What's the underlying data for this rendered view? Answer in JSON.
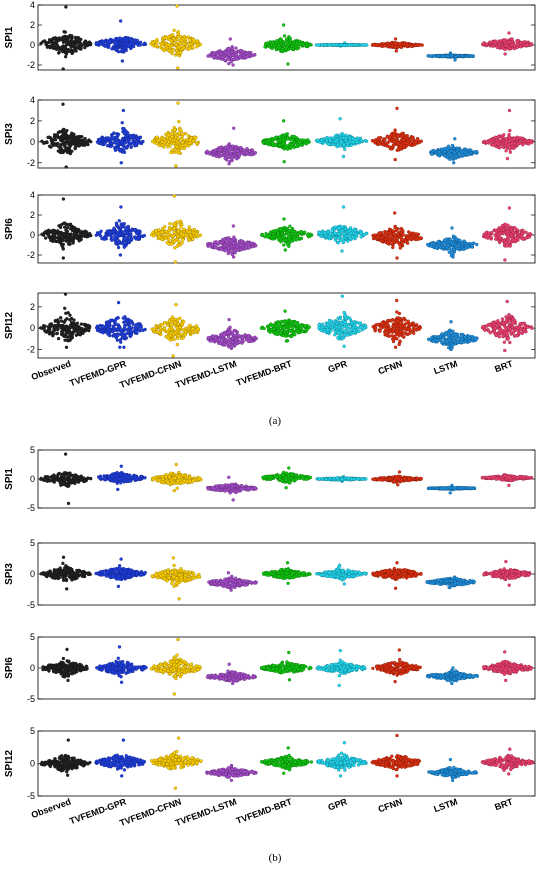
{
  "chart_data": {
    "type": "scatter",
    "style": "beeswarm",
    "categories": [
      "Observed",
      "TVFEMD-GPR",
      "TVFEMD-CFNN",
      "TVFEMD-LSTM",
      "TVFEMD-BRT",
      "GPR",
      "CFNN",
      "LSTM",
      "BRT"
    ],
    "colors": [
      "#222222",
      "#1f3fe0",
      "#ffd000",
      "#a64dcc",
      "#10c810",
      "#20d8f0",
      "#e03010",
      "#1e90e0",
      "#f04070"
    ],
    "panels": [
      {
        "caption": "(a)",
        "axes": [
          {
            "ylabel": "SPI1",
            "ylim": [
              -2.5,
              4
            ],
            "yticks": [
              -2,
              0,
              2,
              4
            ],
            "center": [
              0.1,
              0.15,
              0.15,
              -1.0,
              0.0,
              0.0,
              0.0,
              -1.1,
              0.1
            ],
            "spread": [
              0.9,
              0.6,
              0.9,
              0.55,
              0.55,
              0.03,
              0.2,
              0.08,
              0.45
            ],
            "min": [
              -2.4,
              -1.6,
              -2.3,
              -2.0,
              -1.9,
              -0.1,
              -0.6,
              -1.5,
              -0.9
            ],
            "max": [
              3.8,
              2.4,
              3.9,
              0.6,
              2.0,
              0.2,
              0.6,
              -0.8,
              1.2
            ]
          },
          {
            "ylabel": "SPI3",
            "ylim": [
              -2.5,
              4
            ],
            "yticks": [
              -2,
              0,
              2,
              4
            ],
            "center": [
              0.0,
              0.1,
              0.05,
              -1.0,
              0.0,
              0.1,
              0.05,
              -1.0,
              0.0
            ],
            "spread": [
              0.9,
              0.8,
              0.9,
              0.6,
              0.55,
              0.5,
              0.7,
              0.45,
              0.6
            ],
            "min": [
              -2.4,
              -2.0,
              -2.3,
              -2.1,
              -1.9,
              -1.4,
              -1.7,
              -2.0,
              -1.6
            ],
            "max": [
              3.6,
              3.0,
              3.7,
              1.3,
              2.0,
              2.2,
              3.2,
              0.3,
              3.0
            ]
          },
          {
            "ylabel": "SPI6",
            "ylim": [
              -2.8,
              4
            ],
            "yticks": [
              -2,
              0,
              2,
              4
            ],
            "center": [
              0.0,
              0.0,
              0.1,
              -1.0,
              0.0,
              0.1,
              -0.2,
              -1.0,
              0.0
            ],
            "spread": [
              0.9,
              0.9,
              1.0,
              0.6,
              0.6,
              0.7,
              0.8,
              0.55,
              0.8
            ],
            "min": [
              -2.3,
              -2.0,
              -2.7,
              -2.2,
              -1.5,
              -1.6,
              -2.3,
              -2.2,
              -2.5
            ],
            "max": [
              3.6,
              2.8,
              3.9,
              0.9,
              1.6,
              2.8,
              2.2,
              0.7,
              2.7
            ]
          },
          {
            "ylabel": "SPI12",
            "ylim": [
              -2.8,
              3.3
            ],
            "yticks": [
              -2,
              0,
              2
            ],
            "center": [
              0.0,
              0.0,
              -0.1,
              -1.0,
              0.0,
              0.1,
              0.0,
              -1.0,
              0.0
            ],
            "spread": [
              1.0,
              0.9,
              0.9,
              0.6,
              0.7,
              0.9,
              0.9,
              0.55,
              0.9
            ],
            "min": [
              -1.8,
              -1.8,
              -2.6,
              -1.9,
              -1.2,
              -1.7,
              -1.8,
              -2.0,
              -2.1
            ],
            "max": [
              3.2,
              2.4,
              2.2,
              0.8,
              1.6,
              3.0,
              2.6,
              0.6,
              2.5
            ]
          }
        ]
      },
      {
        "caption": "(b)",
        "axes": [
          {
            "ylabel": "SPI1",
            "ylim": [
              -5,
              5
            ],
            "yticks": [
              -5,
              0,
              5
            ],
            "center": [
              0.0,
              0.2,
              0.0,
              -1.6,
              0.2,
              0.0,
              0.0,
              -1.6,
              0.2
            ],
            "spread": [
              0.9,
              0.7,
              0.9,
              0.6,
              0.6,
              0.15,
              0.35,
              0.12,
              0.35
            ],
            "min": [
              -4.2,
              -1.8,
              -2.0,
              -3.6,
              -1.5,
              -0.4,
              -1.0,
              -2.4,
              -1.1
            ],
            "max": [
              4.3,
              2.2,
              2.5,
              0.3,
              1.9,
              0.4,
              1.2,
              -1.1,
              0.7
            ]
          },
          {
            "ylabel": "SPI3",
            "ylim": [
              -5,
              5
            ],
            "yticks": [
              -5,
              0,
              5
            ],
            "center": [
              0.0,
              0.1,
              -0.3,
              -1.4,
              0.0,
              0.0,
              0.0,
              -1.3,
              0.0
            ],
            "spread": [
              0.9,
              0.8,
              1.0,
              0.6,
              0.6,
              0.6,
              0.75,
              0.5,
              0.65
            ],
            "min": [
              -2.4,
              -2.0,
              -4.0,
              -2.6,
              -1.5,
              -1.6,
              -2.3,
              -2.2,
              -1.8
            ],
            "max": [
              2.7,
              2.4,
              2.6,
              0.2,
              1.8,
              1.4,
              1.8,
              -0.5,
              2.0
            ]
          },
          {
            "ylabel": "SPI6",
            "ylim": [
              -5,
              5
            ],
            "yticks": [
              -5,
              0,
              5
            ],
            "center": [
              0.0,
              0.0,
              0.0,
              -1.4,
              0.0,
              0.0,
              0.0,
              -1.3,
              0.0
            ],
            "spread": [
              0.9,
              0.9,
              1.1,
              0.6,
              0.7,
              0.7,
              0.8,
              0.55,
              0.75
            ],
            "min": [
              -2.0,
              -2.3,
              -4.2,
              -2.5,
              -1.9,
              -2.8,
              -2.2,
              -2.5,
              -2.0
            ],
            "max": [
              3.0,
              3.4,
              4.6,
              0.6,
              2.5,
              2.8,
              2.9,
              0.0,
              2.6
            ]
          },
          {
            "ylabel": "SPI12",
            "ylim": [
              -5,
              5
            ],
            "yticks": [
              -5,
              0,
              5
            ],
            "center": [
              0.0,
              0.2,
              0.3,
              -1.4,
              0.2,
              0.2,
              0.2,
              -1.4,
              0.2
            ],
            "spread": [
              0.9,
              0.9,
              1.0,
              0.55,
              0.7,
              0.8,
              0.9,
              0.5,
              0.8
            ],
            "min": [
              -1.8,
              -1.9,
              -3.8,
              -2.6,
              -1.5,
              -1.9,
              -1.9,
              -2.6,
              -1.6
            ],
            "max": [
              3.6,
              3.6,
              3.9,
              -0.3,
              2.4,
              3.2,
              4.3,
              0.6,
              2.2
            ]
          }
        ]
      }
    ]
  }
}
